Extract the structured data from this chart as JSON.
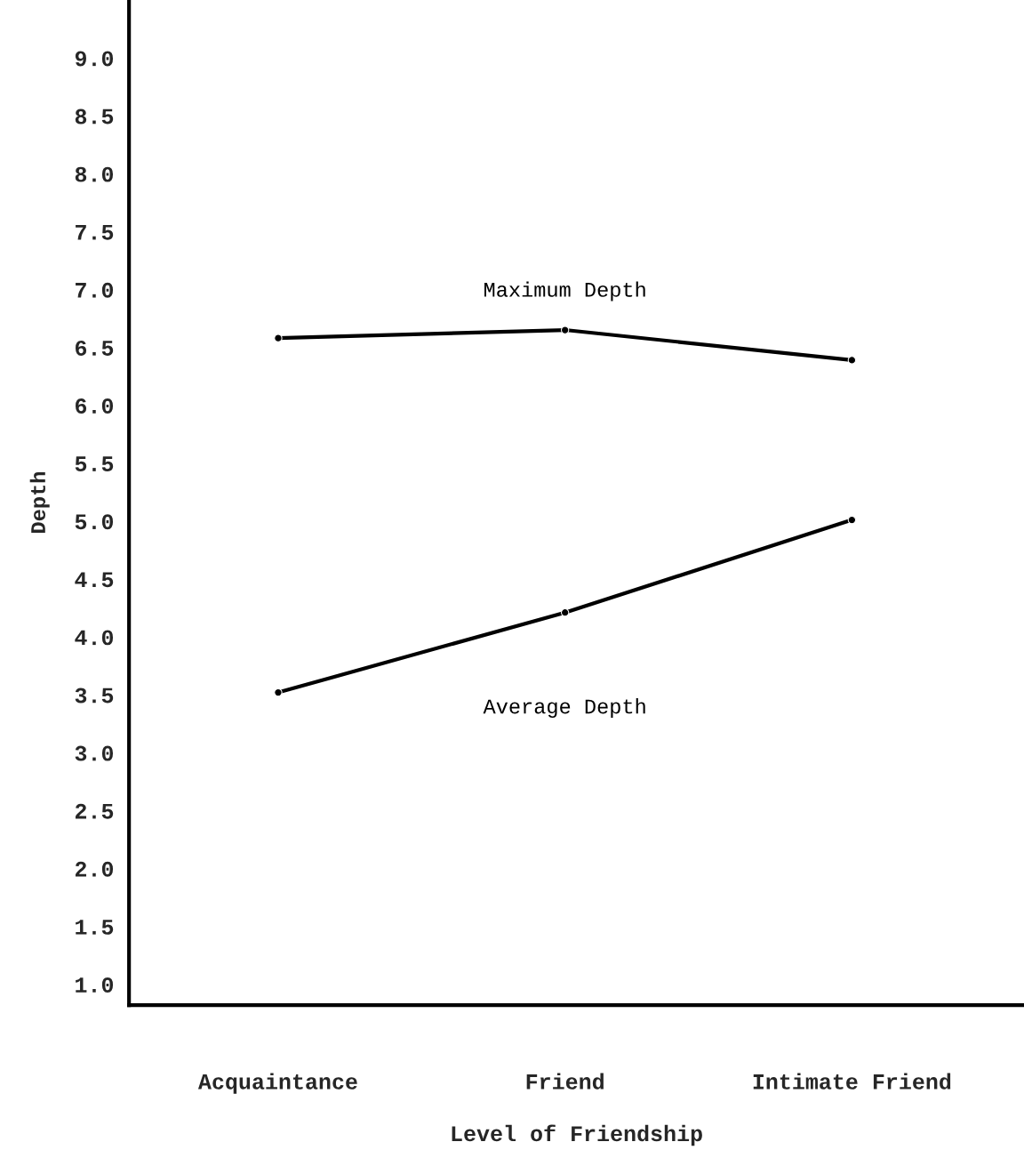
{
  "chart_data": {
    "type": "line",
    "xlabel": "Level of Friendship",
    "ylabel": "Depth",
    "categories": [
      "Acquaintance",
      "Friend",
      "Intimate Friend"
    ],
    "series": [
      {
        "name": "Maximum Depth",
        "color": "#000000",
        "values": [
          6.58,
          6.65,
          6.39
        ]
      },
      {
        "name": "Average Depth",
        "color": "#000000",
        "values": [
          3.52,
          4.21,
          5.01
        ]
      }
    ],
    "ylim": [
      0.82,
      9.5
    ],
    "yticks": [
      {
        "value": 1,
        "label": "1.0"
      },
      1.5,
      {
        "value": 2,
        "label": "2.0"
      },
      2.5,
      {
        "value": 3,
        "label": "3.0"
      },
      3.5,
      {
        "value": 4,
        "label": "4.0"
      },
      4.5,
      {
        "value": 5,
        "label": "5.0"
      },
      5.5,
      {
        "value": 6,
        "label": "6.0"
      },
      6.5,
      {
        "value": 7,
        "label": "7.0"
      },
      7.5,
      {
        "value": 8,
        "label": "8.0"
      },
      8.5,
      {
        "value": 9,
        "label": "9.0"
      }
    ],
    "marker": "circle",
    "line_style": "solid",
    "grid": false,
    "legend": false
  }
}
